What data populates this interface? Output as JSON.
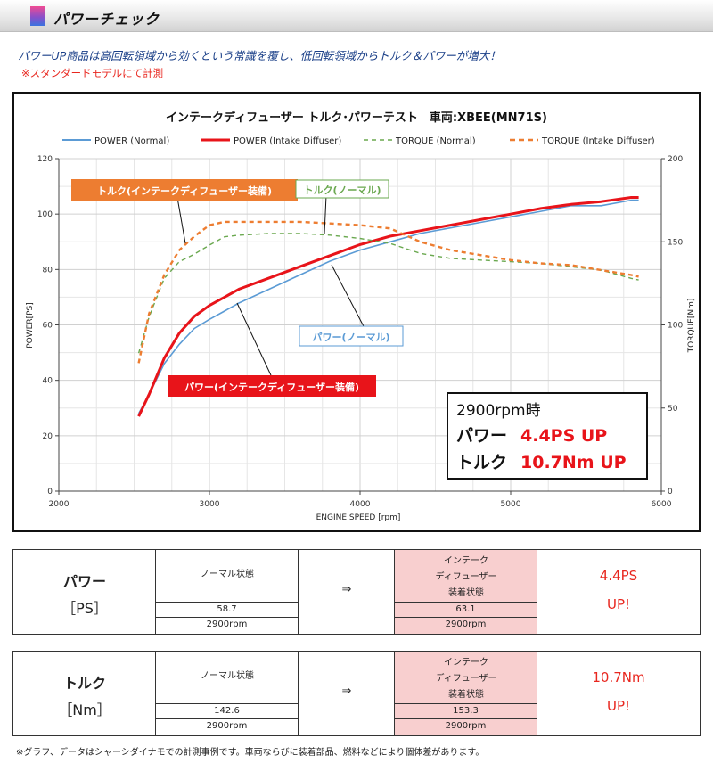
{
  "header": {
    "title": "パワーチェック"
  },
  "lead": "パワーUP商品は高回転領域から効くという常識を覆し、低回転領域からトルク＆パワーが増大！",
  "lead_note": "※スタンダードモデルにて計測",
  "chart_data": {
    "type": "line",
    "title": "インテークディフューザー トルク･パワーテスト　車両:XBEE(MN71S)",
    "xlabel": "ENGINE SPEED [rpm]",
    "ylabel": "POWER[PS]",
    "y2label": "TORQUE[Nm]",
    "xlim": [
      2000,
      6000
    ],
    "ylim": [
      0,
      120
    ],
    "y2lim": [
      0,
      200
    ],
    "xticks": [
      2000,
      3000,
      4000,
      5000,
      6000
    ],
    "yticks": [
      0,
      20,
      40,
      60,
      80,
      100,
      120
    ],
    "y2ticks": [
      0,
      50,
      100,
      150,
      200
    ],
    "grid": true,
    "legend": "top",
    "series": [
      {
        "name": "POWER (Normal)",
        "axis": "left",
        "color": "#5b9bd5",
        "style": "solid",
        "x": [
          2530,
          2600,
          2700,
          2800,
          2900,
          3000,
          3100,
          3200,
          3400,
          3600,
          3800,
          4000,
          4200,
          4400,
          4600,
          4800,
          5000,
          5200,
          5400,
          5600,
          5800,
          5850
        ],
        "y": [
          28,
          35,
          46,
          53,
          58.7,
          62,
          65,
          68,
          73,
          78,
          83,
          87,
          90,
          93,
          95,
          97,
          99,
          101,
          103,
          103,
          105,
          105
        ]
      },
      {
        "name": "POWER (Intake Diffuser)",
        "axis": "left",
        "color": "#e8141a",
        "style": "solid",
        "x": [
          2530,
          2600,
          2700,
          2800,
          2900,
          3000,
          3100,
          3200,
          3400,
          3600,
          3800,
          4000,
          4200,
          4400,
          4600,
          4800,
          5000,
          5200,
          5400,
          5600,
          5800,
          5850
        ],
        "y": [
          27,
          35,
          48,
          57,
          63.1,
          67,
          70,
          73,
          77,
          81,
          85,
          89,
          92,
          94,
          96,
          98,
          100,
          102,
          103.5,
          104.5,
          106,
          106
        ]
      },
      {
        "name": "TORQUE (Normal)",
        "axis": "right",
        "color": "#6aa84f",
        "style": "dash",
        "x": [
          2530,
          2600,
          2700,
          2800,
          2900,
          3000,
          3100,
          3200,
          3400,
          3600,
          3800,
          4000,
          4200,
          4400,
          4600,
          4800,
          5000,
          5200,
          5400,
          5600,
          5800,
          5850
        ],
        "y": [
          83,
          105,
          128,
          138,
          142.6,
          148,
          153,
          154,
          155,
          155,
          154,
          152,
          149,
          143,
          140,
          139,
          138,
          137,
          135,
          133,
          128,
          127
        ]
      },
      {
        "name": "TORQUE (Intake Diffuser)",
        "axis": "right",
        "color": "#ed7d31",
        "style": "dash",
        "x": [
          2530,
          2600,
          2700,
          2800,
          2900,
          3000,
          3100,
          3200,
          3400,
          3600,
          3800,
          4000,
          4200,
          4400,
          4600,
          4800,
          5000,
          5200,
          5400,
          5600,
          5800,
          5850
        ],
        "y": [
          77,
          107,
          130,
          145,
          153.3,
          160,
          162,
          162,
          162,
          162,
          161,
          160,
          158,
          150,
          145,
          142,
          139,
          137,
          136,
          133,
          130,
          129
        ]
      }
    ],
    "callouts": [
      {
        "text": "トルク(インテークディフューザー装備)",
        "color": "#ed7d31"
      },
      {
        "text": "トルク(ノーマル)",
        "color": "#6aa84f"
      },
      {
        "text": "パワー(ノーマル)",
        "color": "#5b9bd5"
      },
      {
        "text": "パワー(インテークディフューザー装備)",
        "color": "#e8141a"
      }
    ],
    "summary": {
      "line1": "2900rpm時",
      "power_label": "パワー",
      "power_value": "4.4PS UP",
      "torque_label": "トルク",
      "torque_value": "10.7Nm UP"
    }
  },
  "tables": [
    {
      "label": "パワー",
      "unit": "［PS］",
      "normal_state": "ノーマル状態",
      "normal_value": "58.7",
      "normal_rpm": "2900rpm",
      "arrow": "⇒",
      "intake_state_lines": [
        "インテーク",
        "ディフューザー",
        "装着状態"
      ],
      "intake_value": "63.1",
      "intake_rpm": "2900rpm",
      "result_line1": "4.4PS",
      "result_line2": "UP!"
    },
    {
      "label": "トルク",
      "unit": "［Nm］",
      "normal_state": "ノーマル状態",
      "normal_value": "142.6",
      "normal_rpm": "2900rpm",
      "arrow": "⇒",
      "intake_state_lines": [
        "インテーク",
        "ディフューザー",
        "装着状態"
      ],
      "intake_value": "153.3",
      "intake_rpm": "2900rpm",
      "result_line1": "10.7Nm",
      "result_line2": "UP!"
    }
  ],
  "footnote": "※グラフ、データはシャーシダイナモでの計測事例です。車両ならびに装着部品、燃料などにより個体差があります。"
}
